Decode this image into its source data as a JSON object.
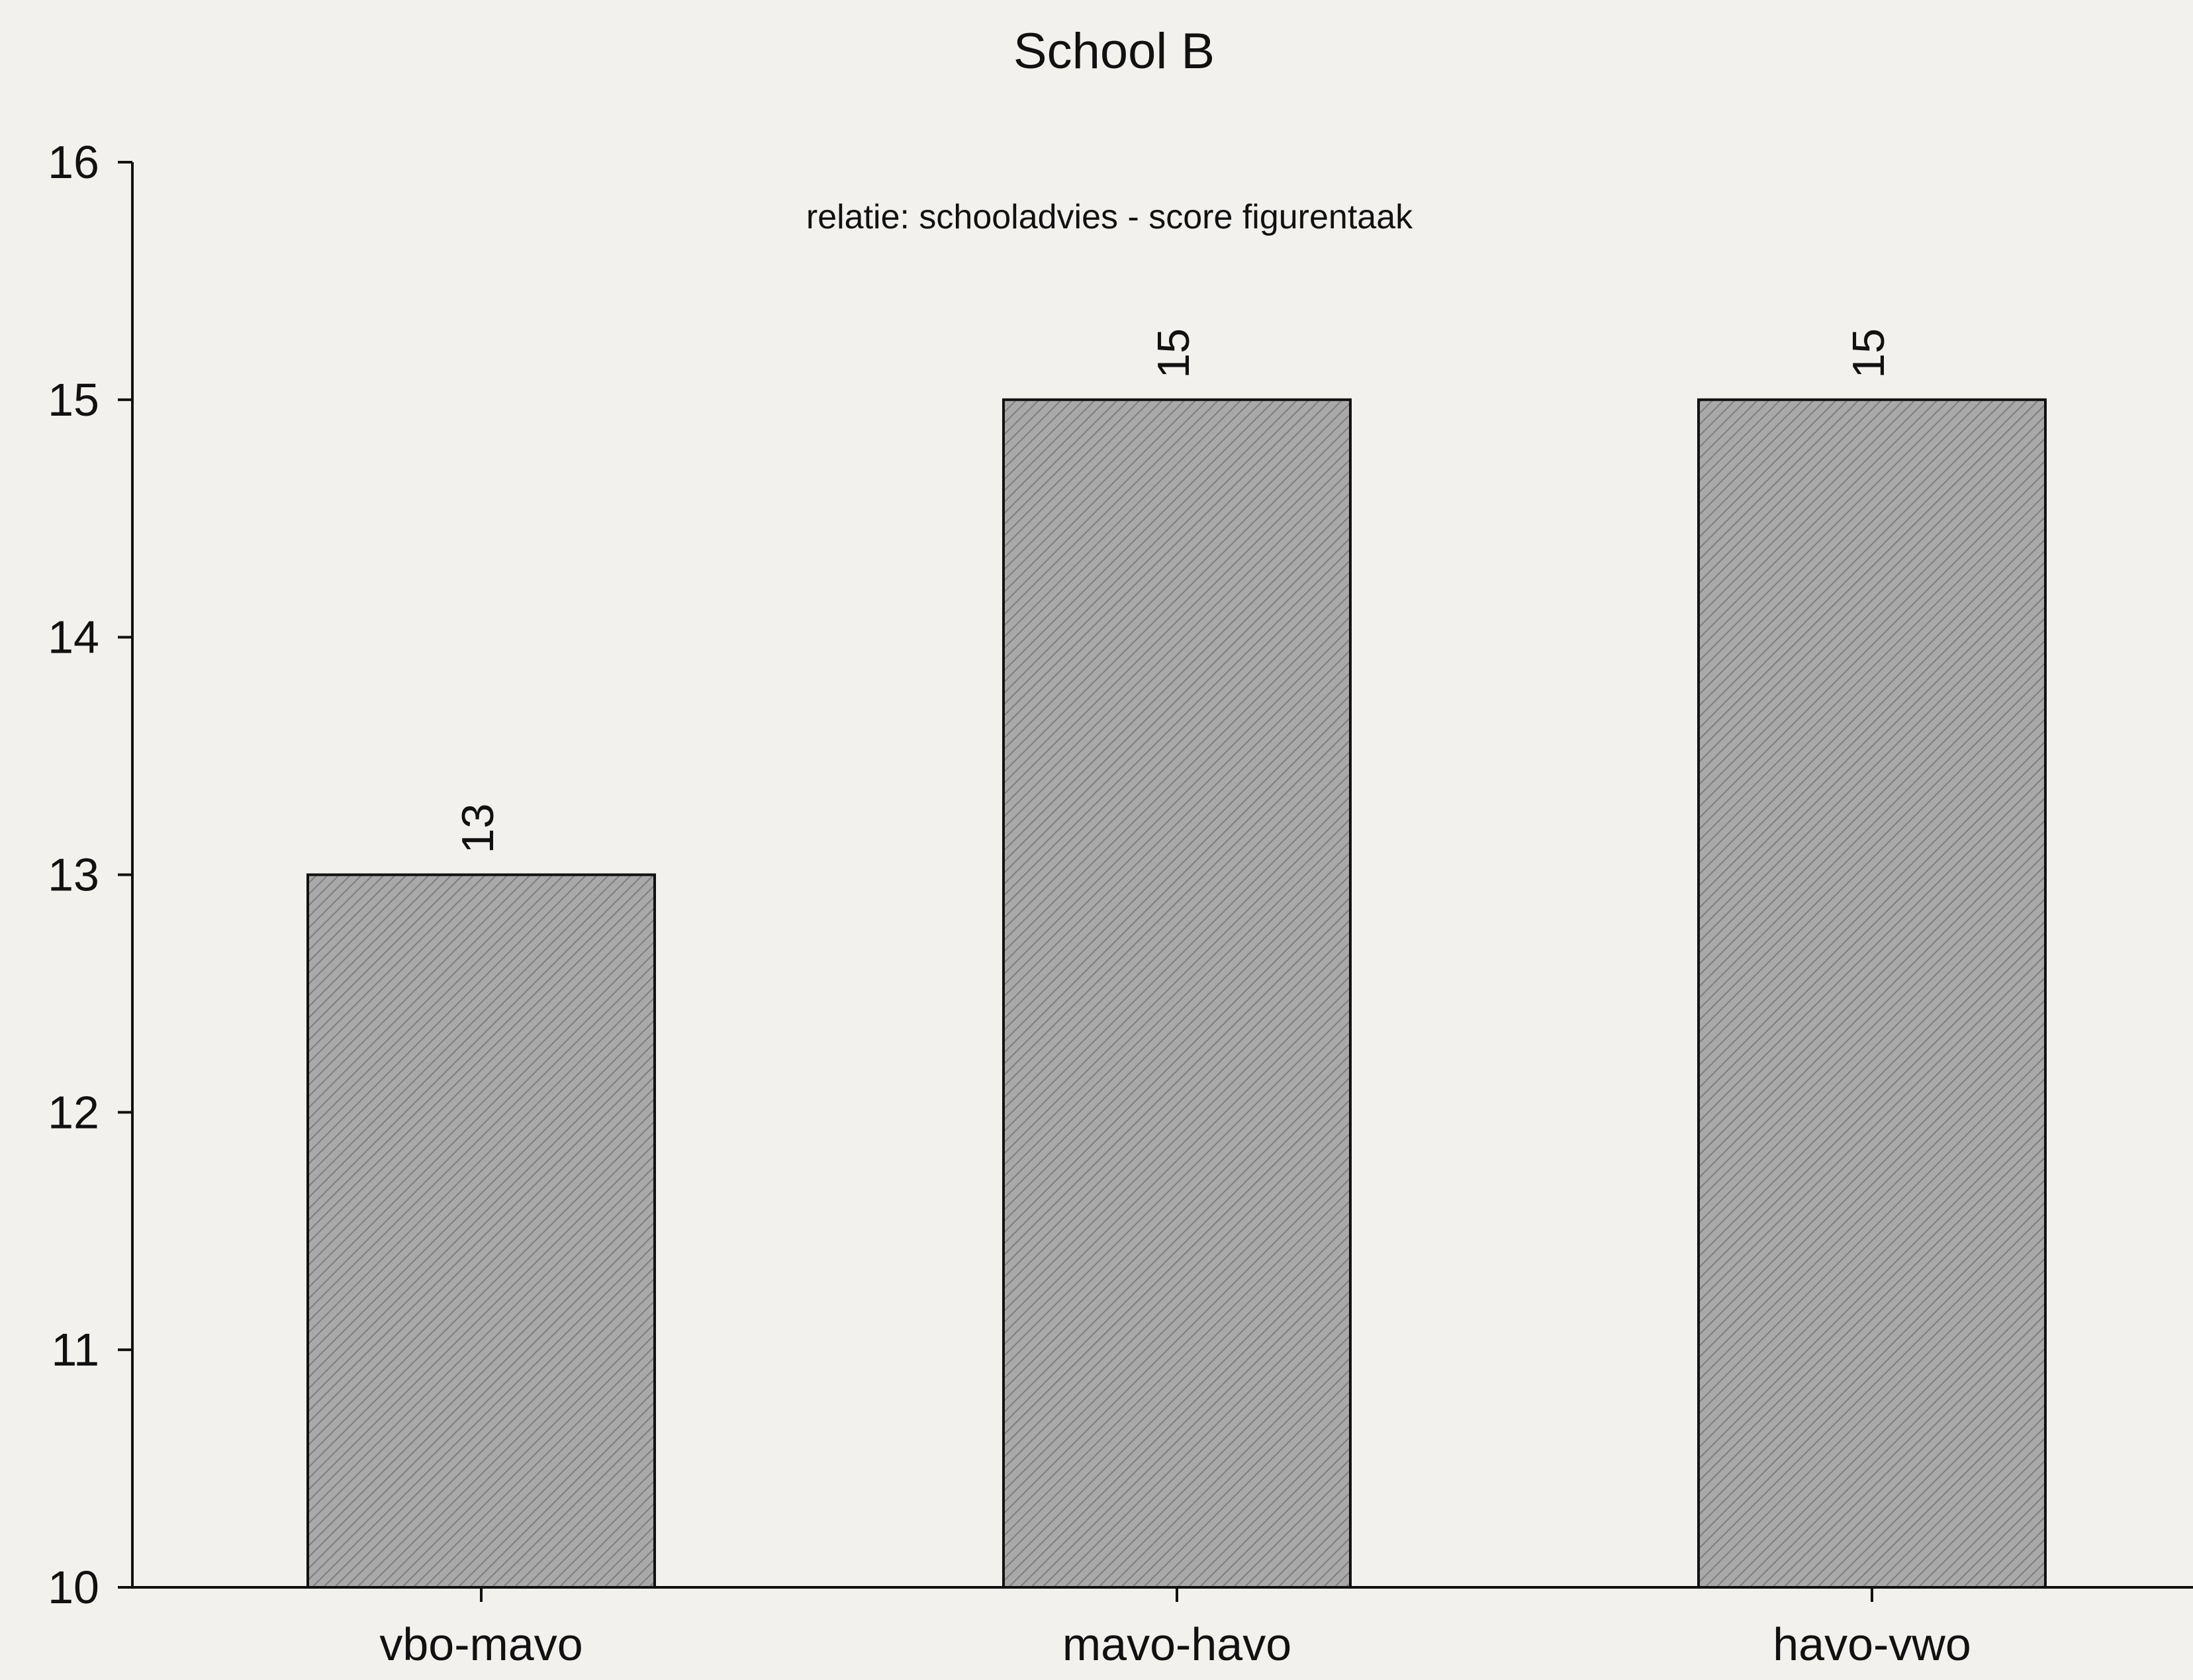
{
  "chart_data": {
    "type": "bar",
    "title": "School B",
    "subtitle": "relatie: schooladvies - score figurentaak",
    "categories": [
      "vbo-mavo",
      "mavo-havo",
      "havo-vwo"
    ],
    "values": [
      13,
      15,
      15
    ],
    "data_labels": [
      "13",
      "15",
      "15"
    ],
    "ylim": [
      10,
      16
    ],
    "yticks": [
      10,
      11,
      12,
      13,
      14,
      15,
      16
    ],
    "xlabel": "",
    "ylabel": "",
    "grid": false,
    "bar_color": "#a9a9a9",
    "bar_pattern": "diagonal-hatch"
  }
}
